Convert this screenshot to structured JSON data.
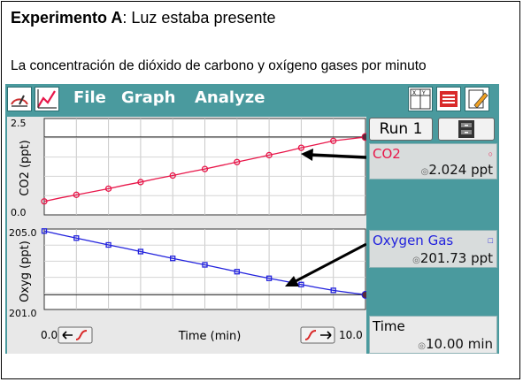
{
  "heading": {
    "bold": "Experimento A",
    "rest": ": Luz estaba presente"
  },
  "subheading": "La concentración de dióxido de carbono y oxígeno gases por minuto",
  "menu": {
    "file": "File",
    "graph": "Graph",
    "analyze": "Analyze"
  },
  "panel": {
    "run_label": "Run 1",
    "co2": {
      "name": "CO2",
      "value": "2.024 ppt",
      "color": "#e8174a"
    },
    "oxygen": {
      "name": "Oxygen Gas",
      "value": "201.73 ppt",
      "color": "#2222dd"
    },
    "time": {
      "name": "Time",
      "value": "10.00 min"
    }
  },
  "axes": {
    "co2_ylabel": "CO2 (ppt)",
    "co2_ymax": "2.5",
    "co2_ymin": "0.0",
    "oxy_ylabel": "Oxyg (ppt)",
    "oxy_ymax": "205.0",
    "oxy_ymin": "201.0",
    "x_label": "Time (min)",
    "x_min": "0.0",
    "x_max": "10.0"
  },
  "chart_data": [
    {
      "type": "line",
      "title": "",
      "xlabel": "Time (min)",
      "ylabel": "CO2 (ppt)",
      "xlim": [
        0,
        10
      ],
      "ylim": [
        0,
        2.5
      ],
      "grid": true,
      "series": [
        {
          "name": "CO2",
          "color": "#e8174a",
          "x": [
            0,
            0.5,
            1,
            1.5,
            2,
            2.5,
            3,
            3.5,
            4,
            4.5,
            5,
            5.5,
            6,
            6.5,
            7,
            7.5,
            8,
            8.5,
            9,
            9.5,
            10
          ],
          "values": [
            0.35,
            0.44,
            0.52,
            0.6,
            0.68,
            0.77,
            0.85,
            0.94,
            1.02,
            1.11,
            1.19,
            1.28,
            1.37,
            1.46,
            1.55,
            1.64,
            1.74,
            1.83,
            1.92,
            1.97,
            2.02
          ]
        }
      ]
    },
    {
      "type": "line",
      "title": "",
      "xlabel": "Time (min)",
      "ylabel": "Oxyg (ppt)",
      "xlim": [
        0,
        10
      ],
      "ylim": [
        201,
        205
      ],
      "grid": true,
      "series": [
        {
          "name": "Oxygen Gas",
          "color": "#2222dd",
          "x": [
            0,
            0.5,
            1,
            1.5,
            2,
            2.5,
            3,
            3.5,
            4,
            4.5,
            5,
            5.5,
            6,
            6.5,
            7,
            7.5,
            8,
            8.5,
            9,
            9.5,
            10
          ],
          "values": [
            204.9,
            204.72,
            204.55,
            204.38,
            204.21,
            204.05,
            203.88,
            203.71,
            203.54,
            203.38,
            203.22,
            203.05,
            202.88,
            202.71,
            202.55,
            202.4,
            202.24,
            202.09,
            201.95,
            201.84,
            201.73
          ]
        }
      ]
    }
  ]
}
